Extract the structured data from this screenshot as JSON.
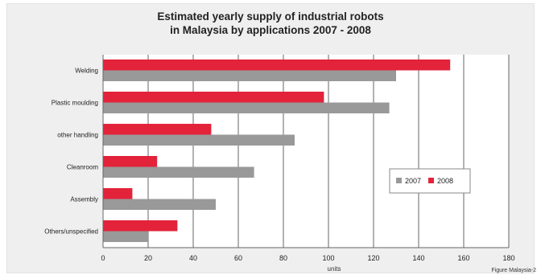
{
  "chart_data": {
    "type": "bar",
    "orientation": "horizontal",
    "title": "Estimated yearly supply of industrial robots\nin Malaysia by applications 2007 - 2008",
    "categories": [
      "Welding",
      "Plastic moulding",
      "other handling",
      "Cleanroom",
      "Assembly",
      "Others/unspecified"
    ],
    "series": [
      {
        "name": "2008",
        "color": "#e2233a",
        "values": [
          154,
          98,
          48,
          24,
          13,
          33
        ]
      },
      {
        "name": "2007",
        "color": "#999999",
        "values": [
          130,
          127,
          85,
          67,
          50,
          20
        ]
      }
    ],
    "xlabel": "units",
    "ylabel": "",
    "xlim": [
      0,
      180
    ],
    "xticks": [
      0,
      20,
      40,
      60,
      80,
      100,
      120,
      140,
      160,
      180
    ],
    "grid": true,
    "legend": {
      "position": "right",
      "entries": [
        "2007",
        "2008"
      ]
    }
  },
  "footnote": "Figure Malaysia-2"
}
